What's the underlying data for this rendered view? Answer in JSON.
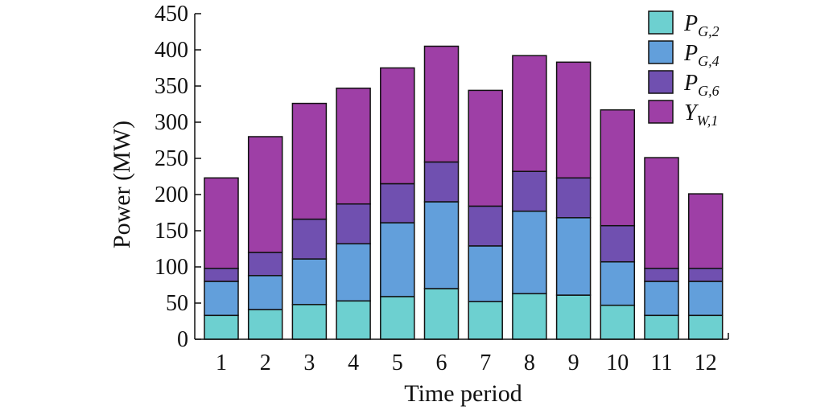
{
  "chart_data": {
    "type": "bar",
    "stacked": true,
    "categories": [
      "1",
      "2",
      "3",
      "4",
      "5",
      "6",
      "7",
      "8",
      "9",
      "10",
      "11",
      "12"
    ],
    "xlabel": "Time period",
    "ylabel": "Power (MW)",
    "ylim": [
      0,
      450
    ],
    "yticks": [
      0,
      50,
      100,
      150,
      200,
      250,
      300,
      350,
      400,
      450
    ],
    "grid": false,
    "legend_position": "top-right",
    "series": [
      {
        "name": "P_{G,2}",
        "label_main": "P",
        "label_sub": "G,2",
        "color": "#6dd0d0",
        "values": [
          33,
          41,
          48,
          53,
          59,
          70,
          52,
          63,
          61,
          47,
          33,
          33
        ]
      },
      {
        "name": "P_{G,4}",
        "label_main": "P",
        "label_sub": "G,4",
        "color": "#629fdb",
        "values": [
          47,
          47,
          63,
          79,
          102,
          120,
          77,
          114,
          107,
          60,
          47,
          47
        ]
      },
      {
        "name": "P_{G,6}",
        "label_main": "P",
        "label_sub": "G,6",
        "color": "#7050b0",
        "values": [
          18,
          32,
          55,
          55,
          54,
          55,
          55,
          55,
          55,
          50,
          18,
          18
        ]
      },
      {
        "name": "Y_{W,1}",
        "label_main": "Y",
        "label_sub": "W,1",
        "color": "#9e3fa6",
        "values": [
          125,
          160,
          160,
          160,
          160,
          160,
          160,
          160,
          160,
          160,
          153,
          103
        ]
      }
    ]
  }
}
